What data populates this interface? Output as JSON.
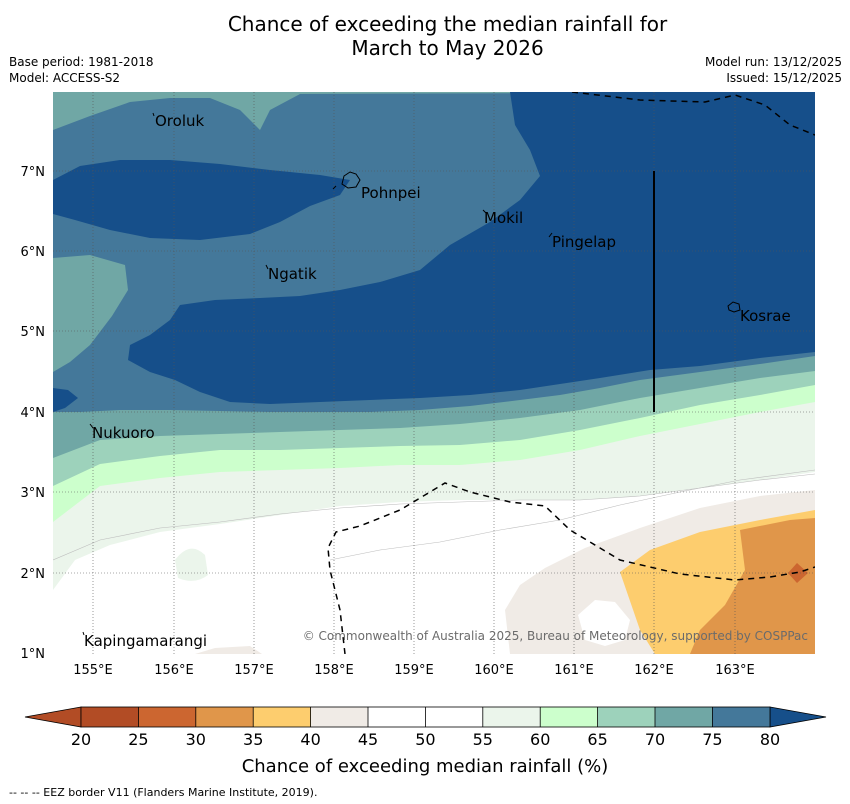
{
  "title": {
    "line1": "Chance of exceeding the median rainfall for",
    "line2": "March to May 2026"
  },
  "meta": {
    "base_period": "Base period: 1981-2018",
    "model": "Model: ACCESS-S2",
    "model_run": "Model run: 13/12/2025",
    "issued": "Issued: 15/12/2025"
  },
  "map": {
    "lon_labels": [
      "155°E",
      "156°E",
      "157°E",
      "158°E",
      "159°E",
      "160°E",
      "161°E",
      "162°E",
      "163°E"
    ],
    "lat_labels": [
      "7°N",
      "6°N",
      "5°N",
      "4°N",
      "3°N",
      "2°N",
      "1°N"
    ],
    "places": {
      "oroluk": "Oroluk",
      "pohnpei": "Pohnpei",
      "mokil": "Mokil",
      "pingelap": "Pingelap",
      "ngatik": "Ngatik",
      "kosrae": "Kosrae",
      "nukuoro": "Nukuoro",
      "kapingamarangi": "Kapingamarangi"
    },
    "copyright": "© Commonwealth of Australia 2025, Bureau of Meteorology, supported by COSPPac"
  },
  "colorbar": {
    "ticks": [
      "20",
      "25",
      "30",
      "35",
      "40",
      "45",
      "50",
      "55",
      "60",
      "65",
      "70",
      "75",
      "80"
    ],
    "colors": [
      "#b24c25",
      "#cc6630",
      "#e0964a",
      "#fdcd6e",
      "#f0ebe6",
      "#ffffff",
      "#ffffff",
      "#ebf5eb",
      "#ccffcc",
      "#9dd2bb",
      "#70a7a5",
      "#44789a",
      "#164f8a"
    ],
    "title": "Chance of exceeding median rainfall (%)"
  },
  "footnote": "--  --  -- EEZ border V11 (Flanders Marine Institute, 2019)."
}
